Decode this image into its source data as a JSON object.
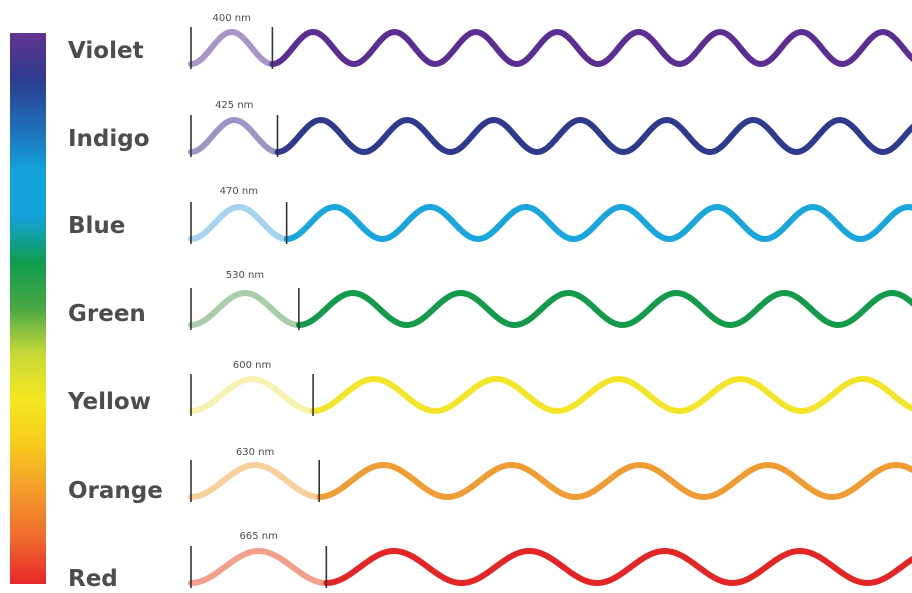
{
  "spectrum": {
    "stops": [
      "#62338f",
      "#2e3b8f",
      "#1f6cb5",
      "#13a2db",
      "#13a2d9",
      "#0f9d4f",
      "#4aa844",
      "#c8d936",
      "#f6e820",
      "#f8c91c",
      "#f39a2a",
      "#ef6a2c",
      "#e8262a"
    ]
  },
  "waves": [
    {
      "name": "Violet",
      "wavelength_label": "400 nm",
      "wavelength_nm": 400,
      "color": "#5b2e91",
      "light_color": "#a996c8"
    },
    {
      "name": "Indigo",
      "wavelength_label": "425 nm",
      "wavelength_nm": 425,
      "color": "#2e3a8c",
      "light_color": "#9b96c6"
    },
    {
      "name": "Blue",
      "wavelength_label": "470 nm",
      "wavelength_nm": 470,
      "color": "#19a6dc",
      "light_color": "#a6d3ee"
    },
    {
      "name": "Green",
      "wavelength_label": "530 nm",
      "wavelength_nm": 530,
      "color": "#139a4a",
      "light_color": "#a9cca9"
    },
    {
      "name": "Yellow",
      "wavelength_label": "600 nm",
      "wavelength_nm": 600,
      "color": "#f3e62a",
      "light_color": "#f7f2b0"
    },
    {
      "name": "Orange",
      "wavelength_label": "630 nm",
      "wavelength_nm": 630,
      "color": "#ef9d35",
      "light_color": "#f7d09c"
    },
    {
      "name": "Red",
      "wavelength_label": "665 nm",
      "wavelength_nm": 665,
      "color": "#e42526",
      "light_color": "#f2a08c"
    }
  ]
}
